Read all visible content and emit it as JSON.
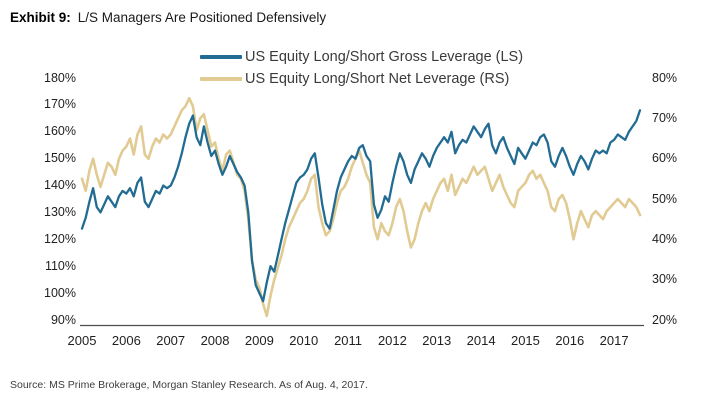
{
  "title": {
    "exhibit": "Exhibit 9:",
    "text": "L/S Managers Are Positioned Defensively"
  },
  "source": "Source: MS Prime Brokerage, Morgan Stanley Research. As of Aug. 4, 2017.",
  "colors": {
    "gross": "#226b92",
    "net": "#e1cb93",
    "axis_line": "#4d4d4d",
    "tick_text": "#1f1f1f"
  },
  "legend": [
    {
      "label": "US Equity Long/Short Gross Leverage (LS)",
      "color_key": "gross"
    },
    {
      "label": "US Equity Long/Short Net Leverage (RS)",
      "color_key": "net"
    }
  ],
  "chart_data": {
    "type": "line",
    "title": "",
    "x_start_year": 2005,
    "points_per_year": 12,
    "x_tick_labels": [
      "2005",
      "2006",
      "2007",
      "2008",
      "2009",
      "2010",
      "2011",
      "2012",
      "2013",
      "2014",
      "2015",
      "2016",
      "2017"
    ],
    "left_axis": {
      "unit": "%",
      "min": 90,
      "max": 180,
      "tick_labels": [
        "180%",
        "170%",
        "160%",
        "150%",
        "140%",
        "130%",
        "120%",
        "110%",
        "100%",
        "90%"
      ]
    },
    "right_axis": {
      "unit": "%",
      "min": 20,
      "max": 80,
      "tick_labels": [
        "80%",
        "70%",
        "60%",
        "50%",
        "40%",
        "30%",
        "20%"
      ]
    },
    "grid": false,
    "legend_position": "top",
    "series": [
      {
        "name": "US Equity Long/Short Gross Leverage (LS)",
        "axis": "left",
        "color_key": "gross",
        "values": [
          124,
          128,
          134,
          139,
          132,
          130,
          133,
          136,
          134,
          132,
          136,
          138,
          137,
          139,
          136,
          141,
          143,
          134,
          132,
          135,
          138,
          137,
          140,
          139,
          140,
          143,
          147,
          152,
          158,
          163,
          166,
          158,
          155,
          162,
          156,
          151,
          153,
          148,
          144,
          147,
          151,
          148,
          145,
          143,
          140,
          130,
          112,
          103,
          100,
          97,
          104,
          110,
          108,
          114,
          120,
          126,
          131,
          136,
          141,
          143,
          144,
          146,
          150,
          152,
          143,
          133,
          126,
          124,
          131,
          138,
          143,
          146,
          149,
          151,
          150,
          154,
          155,
          151,
          149,
          133,
          128,
          131,
          136,
          134,
          141,
          147,
          152,
          149,
          144,
          141,
          146,
          149,
          152,
          150,
          147,
          151,
          154,
          156,
          158,
          156,
          160,
          152,
          155,
          157,
          156,
          159,
          162,
          160,
          158,
          161,
          163,
          155,
          152,
          156,
          158,
          154,
          151,
          148,
          154,
          152,
          150,
          153,
          156,
          155,
          158,
          159,
          156,
          149,
          147,
          151,
          154,
          151,
          147,
          144,
          148,
          151,
          149,
          146,
          150,
          153,
          152,
          153,
          152,
          156,
          157,
          159,
          158,
          157,
          160,
          162,
          164,
          168
        ]
      },
      {
        "name": "US Equity Long/Short Net Leverage (RS)",
        "axis": "right",
        "color_key": "net",
        "values": [
          55,
          52,
          57,
          60,
          56,
          53,
          56,
          59,
          58,
          56,
          60,
          62,
          63,
          65,
          61,
          66,
          68,
          61,
          60,
          63,
          65,
          64,
          66,
          65,
          66,
          68,
          70,
          72,
          73,
          75,
          73,
          67,
          70,
          71,
          67,
          63,
          64,
          60,
          57,
          61,
          62,
          59,
          56,
          55,
          52,
          45,
          35,
          30,
          28,
          24,
          21,
          26,
          30,
          33,
          36,
          40,
          43,
          45,
          47,
          49,
          50,
          52,
          55,
          56,
          48,
          44,
          41,
          42,
          45,
          49,
          52,
          53,
          55,
          58,
          60,
          62,
          59,
          56,
          54,
          43,
          40,
          44,
          42,
          41,
          44,
          48,
          50,
          47,
          42,
          38,
          40,
          44,
          47,
          49,
          47,
          50,
          52,
          54,
          55,
          52,
          56,
          51,
          53,
          55,
          54,
          56,
          58,
          56,
          57,
          58,
          55,
          52,
          54,
          56,
          53,
          51,
          49,
          48,
          52,
          53,
          54,
          56,
          57,
          55,
          56,
          54,
          52,
          48,
          47,
          50,
          51,
          49,
          45,
          40,
          44,
          47,
          45,
          43,
          46,
          47,
          46,
          45,
          47,
          48,
          49,
          50,
          49,
          48,
          50,
          49,
          48,
          46
        ]
      }
    ]
  }
}
